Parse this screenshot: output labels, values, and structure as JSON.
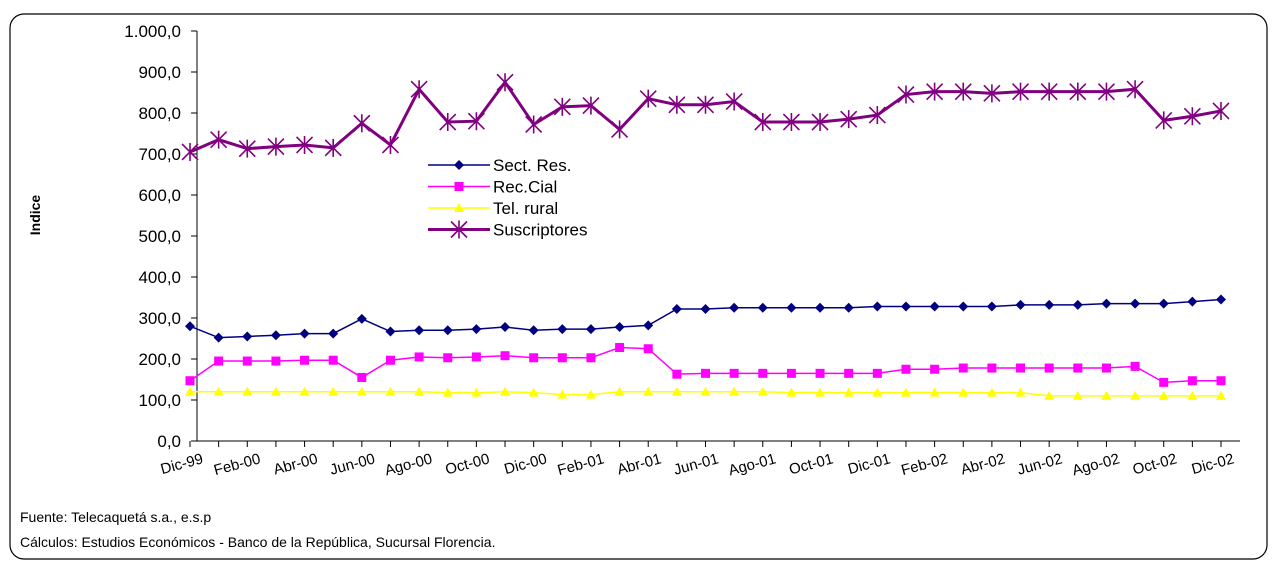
{
  "chart_data": {
    "type": "line",
    "y_label": "Indice",
    "categories": [
      "Dic-99",
      null,
      "Feb-00",
      null,
      "Abr-00",
      null,
      "Jun-00",
      null,
      "Ago-00",
      null,
      "Oct-00",
      null,
      "Dic-00",
      null,
      "Feb-01",
      null,
      "Abr-01",
      null,
      "Jun-01",
      null,
      "Ago-01",
      null,
      "Oct-01",
      null,
      "Dic-01",
      null,
      "Feb-02",
      null,
      "Abr-02",
      null,
      "Jun-02",
      null,
      "Ago-02",
      null,
      "Oct-02",
      null,
      "Dic-02"
    ],
    "series": [
      {
        "name": "Sect. Res.",
        "color": "#000080",
        "marker": "diamond",
        "values": [
          280,
          252,
          255,
          258,
          262,
          262,
          298,
          267,
          270,
          270,
          273,
          278,
          270,
          273,
          273,
          278,
          282,
          322,
          322,
          325,
          325,
          325,
          325,
          325,
          328,
          328,
          328,
          328,
          328,
          332,
          332,
          332,
          335,
          335,
          335,
          340,
          345
        ]
      },
      {
        "name": "Rec.Cial",
        "color": "#ff00ff",
        "marker": "square",
        "values": [
          147,
          195,
          195,
          195,
          197,
          197,
          155,
          197,
          205,
          203,
          205,
          208,
          203,
          203,
          203,
          228,
          225,
          163,
          165,
          165,
          165,
          165,
          165,
          165,
          165,
          175,
          175,
          178,
          178,
          178,
          178,
          178,
          178,
          182,
          143,
          147,
          147
        ]
      },
      {
        "name": "Tel. rural",
        "color": "#ffff00",
        "marker": "triangle",
        "values": [
          120,
          120,
          120,
          120,
          120,
          120,
          120,
          120,
          120,
          118,
          118,
          120,
          118,
          113,
          113,
          120,
          120,
          120,
          120,
          120,
          120,
          118,
          118,
          118,
          118,
          118,
          118,
          118,
          118,
          118,
          110,
          110,
          110,
          110,
          110,
          110,
          110
        ]
      },
      {
        "name": "Suscriptores",
        "color": "#800080",
        "marker": "star",
        "values": [
          705,
          735,
          713,
          718,
          722,
          715,
          775,
          722,
          858,
          778,
          780,
          875,
          772,
          815,
          818,
          760,
          835,
          820,
          820,
          828,
          778,
          778,
          778,
          785,
          795,
          845,
          852,
          852,
          848,
          852,
          852,
          852,
          852,
          858,
          782,
          792,
          805
        ]
      }
    ],
    "ylim": [
      0,
      1000
    ],
    "yticks": [
      {
        "value": 0,
        "label": "0,0"
      },
      {
        "value": 100,
        "label": "100,0"
      },
      {
        "value": 200,
        "label": "200,0"
      },
      {
        "value": 300,
        "label": "300,0"
      },
      {
        "value": 400,
        "label": "400,0"
      },
      {
        "value": 500,
        "label": "500,0"
      },
      {
        "value": 600,
        "label": "600,0"
      },
      {
        "value": 700,
        "label": "700,0"
      },
      {
        "value": 800,
        "label": "800,0"
      },
      {
        "value": 900,
        "label": "900,0"
      },
      {
        "value": 1000,
        "label": "1.000,0"
      }
    ],
    "legend": "inside-left",
    "notes": [
      "Fuente: Telecaquetá s.a., e.s.p",
      "Cálculos:  Estudios Económicos - Banco de la República, Sucursal Florencia."
    ]
  }
}
